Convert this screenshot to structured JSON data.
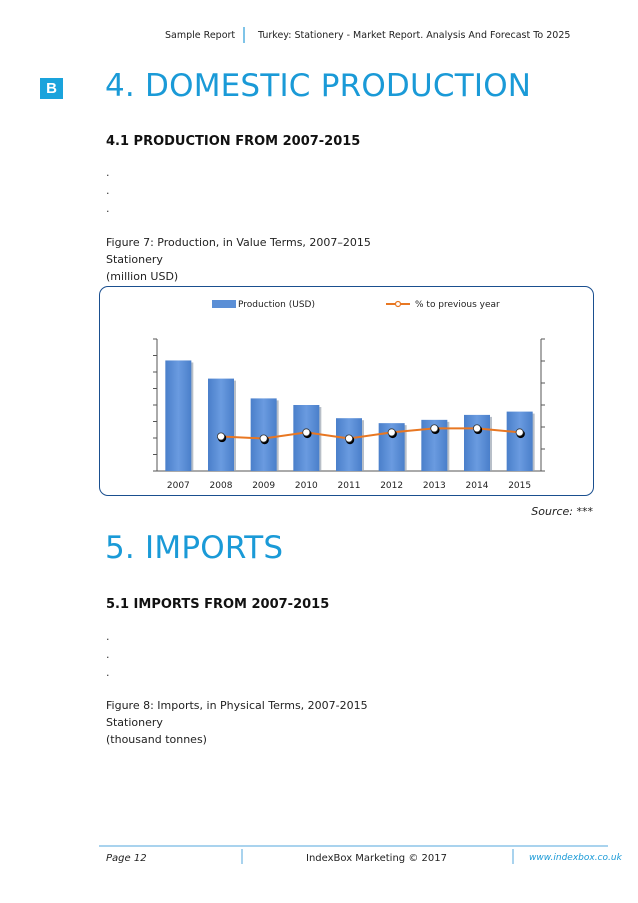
{
  "header": {
    "left": "Sample Report",
    "right": "Turkey: Stationery - Market Report. Analysis And Forecast To 2025"
  },
  "badge": "B",
  "section4": {
    "title": "4. DOMESTIC PRODUCTION",
    "subtitle": "4.1 PRODUCTION FROM 2007-2015",
    "dots": [
      ".",
      ".",
      "."
    ],
    "caption": {
      "line1": "Figure 7: Production, in Value Terms, 2007–2015",
      "line2": "Stationery",
      "line3": "(million USD)"
    }
  },
  "chart_data": {
    "type": "bar",
    "title": "Production, in Value Terms, 2007–2015",
    "categories": [
      "2007",
      "2008",
      "2009",
      "2010",
      "2011",
      "2012",
      "2013",
      "2014",
      "2015"
    ],
    "series": [
      {
        "name": "Production (USD)",
        "kind": "bar",
        "axis": "left",
        "color": "#5b8fd6",
        "values": [
          6.7,
          5.6,
          4.4,
          4.0,
          3.2,
          2.9,
          3.1,
          3.4,
          3.6
        ]
      },
      {
        "name": "% to previous year",
        "kind": "line",
        "axis": "right",
        "color": "#e87722",
        "values": [
          null,
          1.7,
          1.6,
          1.9,
          1.6,
          1.9,
          2.1,
          2.1,
          1.9
        ]
      }
    ],
    "ylim_left": [
      0,
      8
    ],
    "ylim_right": [
      0,
      6.5
    ],
    "left_ticks": 8,
    "right_ticks": 6,
    "legend_position": "top",
    "grid": false,
    "xlabel": "",
    "ylabel": ""
  },
  "source": "Source: ***",
  "section5": {
    "title": "5. IMPORTS",
    "subtitle": "5.1 IMPORTS FROM 2007-2015",
    "dots": [
      ".",
      ".",
      "."
    ],
    "caption": {
      "line1": "Figure 8: Imports, in Physical Terms, 2007-2015",
      "line2": "Stationery",
      "line3": "(thousand tonnes)"
    }
  },
  "footer": {
    "page": "Page 12",
    "center": "IndexBox Marketing © 2017",
    "url": "www.indexbox.co.uk"
  }
}
